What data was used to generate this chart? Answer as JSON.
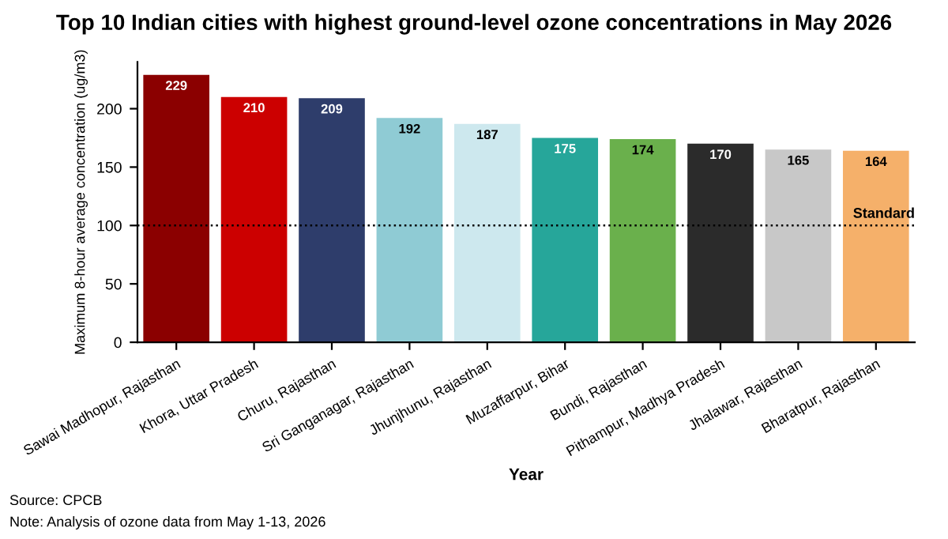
{
  "chart_data": {
    "type": "bar",
    "title": "Top 10 Indian cities with highest ground-level ozone concentrations in May 2026",
    "xlabel": "Year",
    "ylabel": "Maximum 8-hour average concentration (ug/m3)",
    "categories": [
      "Sawai Madhopur, Rajasthan",
      "Khora, Uttar Pradesh",
      "Churu, Rajasthan",
      "Sri Ganganagar, Rajasthan",
      "Jhunjhunu, Rajasthan",
      "Muzaffarpur, Bihar",
      "Bundi, Rajasthan",
      "Pithampur, Madhya Pradesh",
      "Jhalawar, Rajasthan",
      "Bharatpur, Rajasthan"
    ],
    "values": [
      229,
      210,
      209,
      192,
      187,
      175,
      174,
      170,
      165,
      164
    ],
    "colors": [
      "#8b0000",
      "#cc0000",
      "#2e3d6b",
      "#8fcbd4",
      "#cde8ee",
      "#26a69a",
      "#6ab04c",
      "#2b2b2b",
      "#c8c8c8",
      "#f5b06a"
    ],
    "ylim": [
      0,
      240
    ],
    "yticks": [
      0,
      50,
      100,
      150,
      200
    ],
    "grid": false,
    "data_labels": true,
    "ref_lines": [
      {
        "axis": "y",
        "value": 100,
        "label": "Standard",
        "color": "#000000",
        "line_style": "dotted"
      }
    ],
    "annotations": [
      "Source: CPCB",
      "Note: Analysis of ozone data from May 1-13, 2026"
    ]
  }
}
